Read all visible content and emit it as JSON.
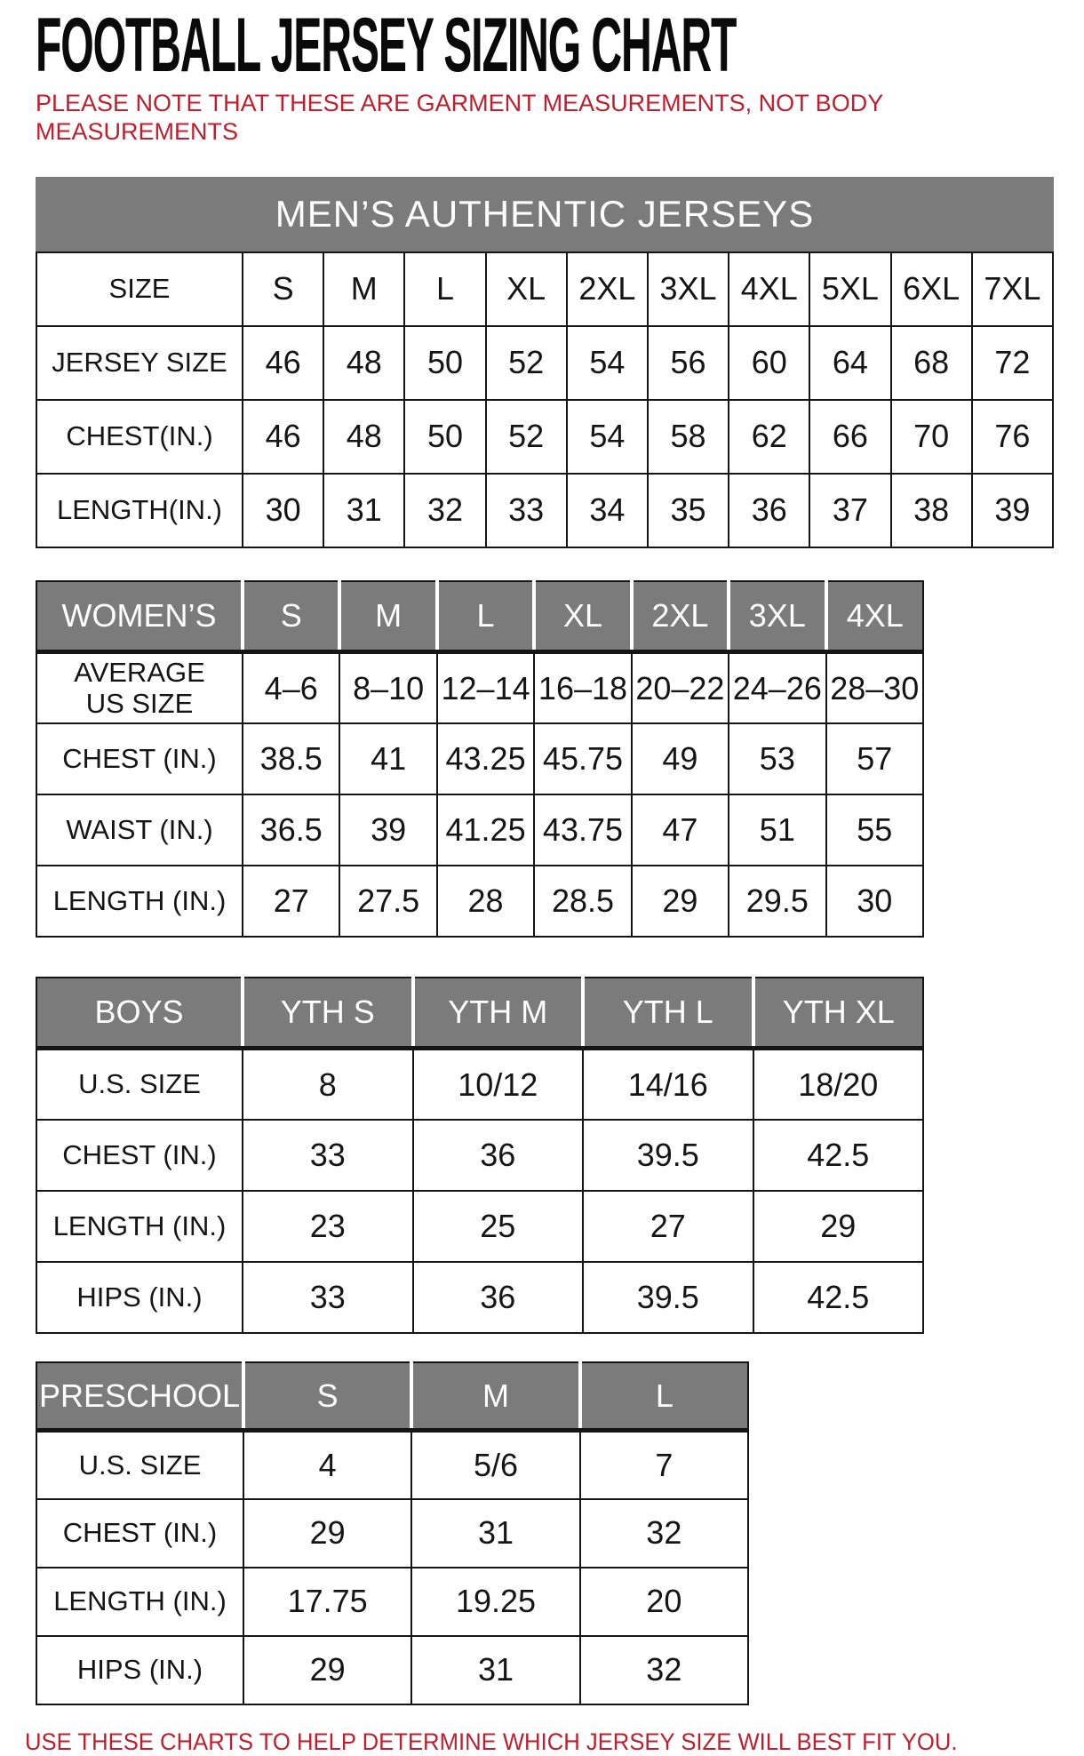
{
  "page": {
    "title": "FOOTBALL JERSEY SIZING CHART",
    "note": "PLEASE NOTE THAT THESE ARE GARMENT MEASUREMENTS, NOT BODY MEASUREMENTS",
    "footer": "USE THESE CHARTS TO HELP DETERMINE WHICH JERSEY SIZE WILL BEST FIT YOU."
  },
  "colors": {
    "accent_red": "#be1e2d",
    "header_gray": "#7b7b7b",
    "border_black": "#151515",
    "background": "#ffffff"
  },
  "tables": {
    "men": {
      "title": "MEN’S AUTHENTIC JERSEYS",
      "header_row": false,
      "rows": [
        [
          "SIZE",
          "S",
          "M",
          "L",
          "XL",
          "2XL",
          "3XL",
          "4XL",
          "5XL",
          "6XL",
          "7XL"
        ],
        [
          "JERSEY SIZE",
          "46",
          "48",
          "50",
          "52",
          "54",
          "56",
          "60",
          "64",
          "68",
          "72"
        ],
        [
          "CHEST(IN.)",
          "46",
          "48",
          "50",
          "52",
          "54",
          "58",
          "62",
          "66",
          "70",
          "76"
        ],
        [
          "LENGTH(IN.)",
          "30",
          "31",
          "32",
          "33",
          "34",
          "35",
          "36",
          "37",
          "38",
          "39"
        ]
      ]
    },
    "women": {
      "header_row": true,
      "rows": [
        [
          "WOMEN’S",
          "S",
          "M",
          "L",
          "XL",
          "2XL",
          "3XL",
          "4XL"
        ],
        [
          "AVERAGE\nUS SIZE",
          "4–6",
          "8–10",
          "12–14",
          "16–18",
          "20–22",
          "24–26",
          "28–30"
        ],
        [
          "CHEST (IN.)",
          "38.5",
          "41",
          "43.25",
          "45.75",
          "49",
          "53",
          "57"
        ],
        [
          "WAIST (IN.)",
          "36.5",
          "39",
          "41.25",
          "43.75",
          "47",
          "51",
          "55"
        ],
        [
          "LENGTH (IN.)",
          "27",
          "27.5",
          "28",
          "28.5",
          "29",
          "29.5",
          "30"
        ]
      ]
    },
    "boys": {
      "header_row": true,
      "rows": [
        [
          "BOYS",
          "YTH S",
          "YTH M",
          "YTH L",
          "YTH XL"
        ],
        [
          "U.S. SIZE",
          "8",
          "10/12",
          "14/16",
          "18/20"
        ],
        [
          "CHEST (IN.)",
          "33",
          "36",
          "39.5",
          "42.5"
        ],
        [
          "LENGTH (IN.)",
          "23",
          "25",
          "27",
          "29"
        ],
        [
          "HIPS (IN.)",
          "33",
          "36",
          "39.5",
          "42.5"
        ]
      ]
    },
    "preschool": {
      "header_row": true,
      "rows": [
        [
          "PRESCHOOL",
          "S",
          "M",
          "L"
        ],
        [
          "U.S. SIZE",
          "4",
          "5/6",
          "7"
        ],
        [
          "CHEST (IN.)",
          "29",
          "31",
          "32"
        ],
        [
          "LENGTH (IN.)",
          "17.75",
          "19.25",
          "20"
        ],
        [
          "HIPS (IN.)",
          "29",
          "31",
          "32"
        ]
      ]
    }
  }
}
